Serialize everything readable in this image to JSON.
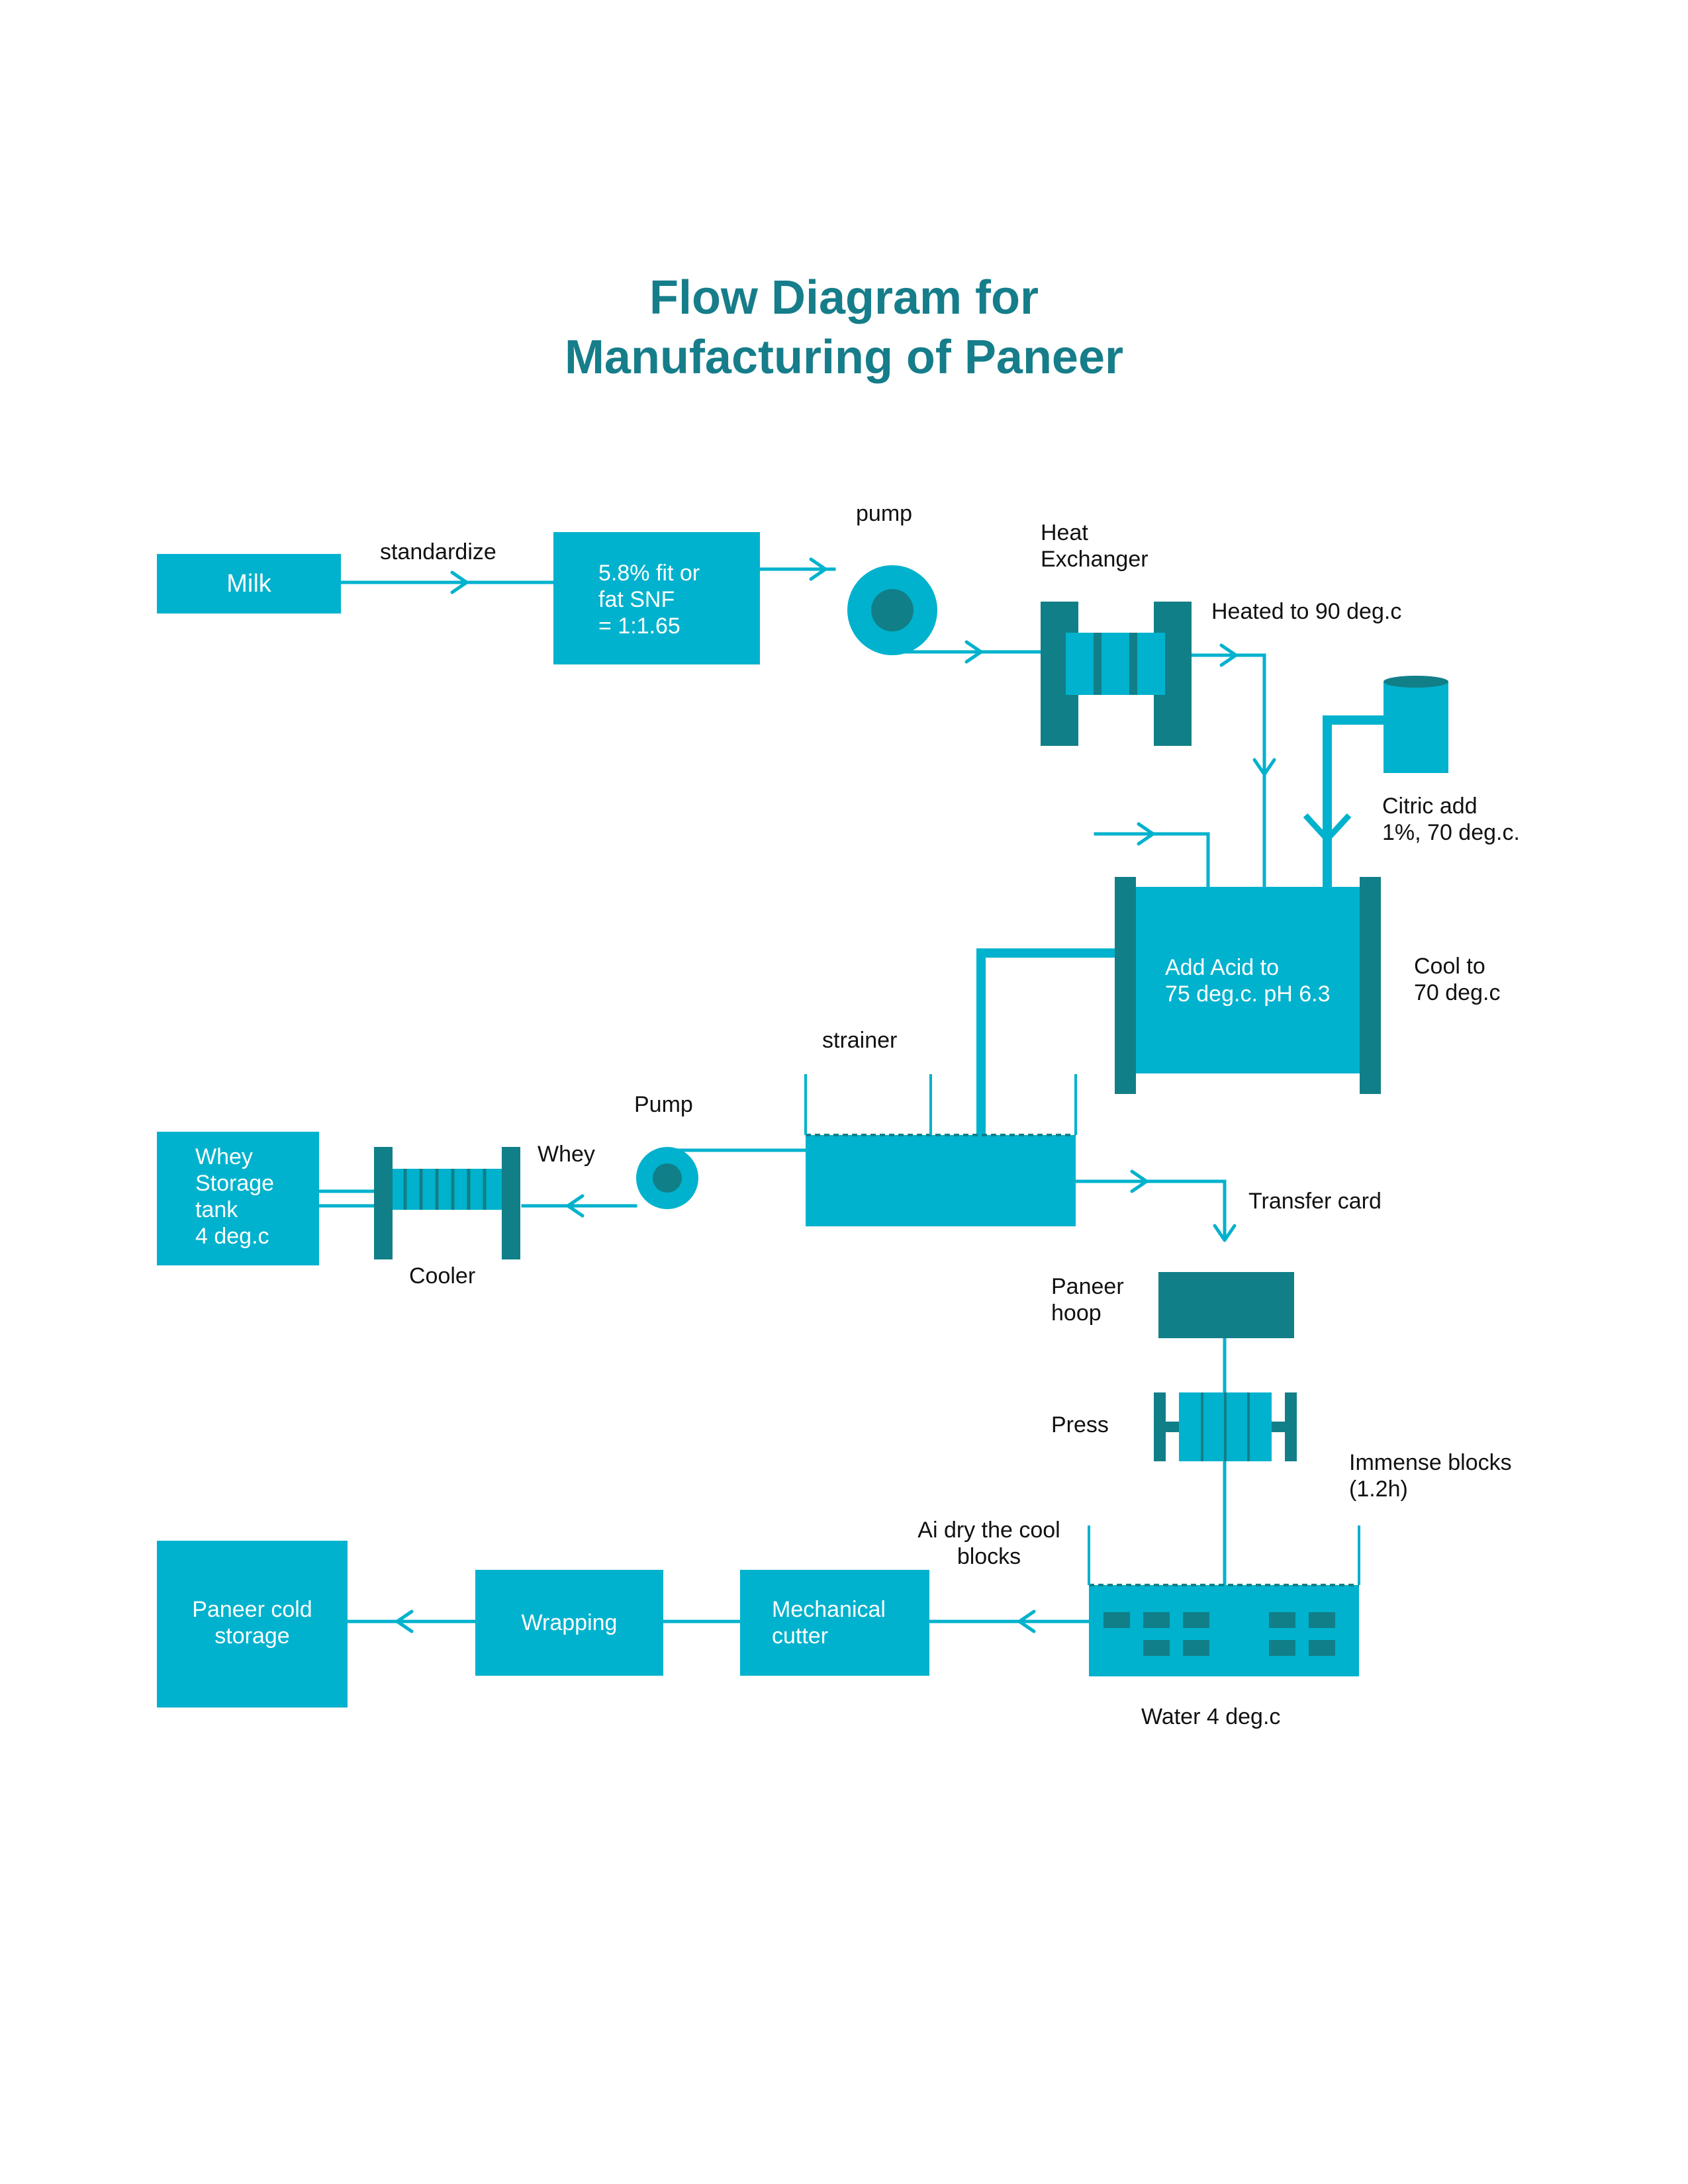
{
  "title": {
    "line1": "Flow Diagram for",
    "line2": "Manufacturing of Paneer"
  },
  "nodes": {
    "milk": "Milk",
    "standardize_box": {
      "line1": "5.8% fit or",
      "line2": "fat SNF",
      "line3": "= 1:1.65"
    },
    "acid_tank": {
      "line1": "Add Acid to",
      "line2": "75 deg.c. pH 6.3"
    },
    "whey_tank": {
      "line1": "Whey",
      "line2": "Storage",
      "line3": "tank",
      "line4": "4 deg.c"
    },
    "cold_storage": {
      "line1": "Paneer cold",
      "line2": "storage"
    },
    "wrapping": "Wrapping",
    "cutter": {
      "line1": "Mechanical",
      "line2": "cutter"
    }
  },
  "labels": {
    "standardize": "standardize",
    "pump_top": "pump",
    "heat_exchanger": {
      "line1": "Heat",
      "line2": "Exchanger"
    },
    "heated": "Heated to 90 deg.c",
    "citric": {
      "line1": "Citric add",
      "line2": "1%, 70 deg.c."
    },
    "cool_to": {
      "line1": "Cool to",
      "line2": "70 deg.c"
    },
    "strainer": "strainer",
    "pump_mid": "Pump",
    "whey": "Whey",
    "cooler": "Cooler",
    "transfer": "Transfer card",
    "hoop": {
      "line1": "Paneer",
      "line2": "hoop"
    },
    "press": "Press",
    "immense": {
      "line1": "Immense blocks",
      "line2": "(1.2h)"
    },
    "air_dry": {
      "line1": "Ai dry the cool",
      "line2": "blocks"
    },
    "water": "Water 4 deg.c"
  },
  "colors": {
    "primary": "#00b2cd",
    "dark": "#117f88",
    "title": "#167d8a",
    "text": "#111111"
  }
}
